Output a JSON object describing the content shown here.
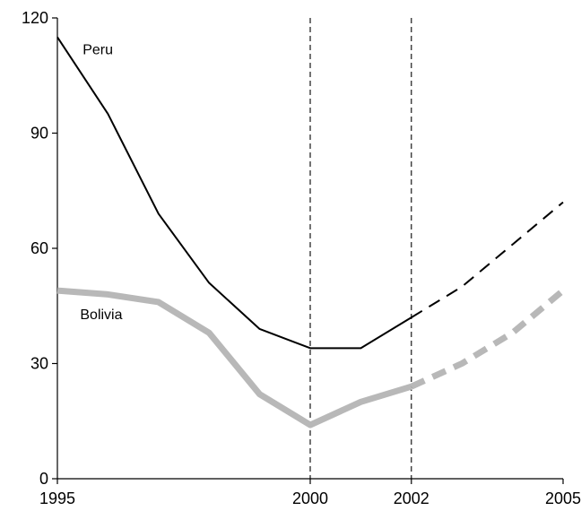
{
  "chart_data": {
    "type": "line",
    "title": "",
    "xlabel": "",
    "ylabel": "",
    "xlim": [
      1995,
      2005
    ],
    "ylim": [
      0,
      120
    ],
    "x_ticks": [
      "1995",
      "2000",
      "2002",
      "2005"
    ],
    "y_ticks": [
      "0",
      "30",
      "60",
      "90",
      "120"
    ],
    "reference_lines_x": [
      2000,
      2002
    ],
    "grid": false,
    "series": [
      {
        "name": "Peru",
        "color": "#000000",
        "style": "thin",
        "x": [
          1995,
          1996,
          1997,
          1998,
          1999,
          2000,
          2001,
          2002
        ],
        "values": [
          115,
          95,
          69,
          51,
          39,
          34,
          34,
          42
        ],
        "projection": {
          "x": [
            2002,
            2003,
            2004,
            2005
          ],
          "values": [
            42,
            50,
            61,
            72
          ]
        }
      },
      {
        "name": "Bolivia",
        "color": "#b8b8b8",
        "style": "thick",
        "x": [
          1995,
          1996,
          1997,
          1998,
          1999,
          2000,
          2001,
          2002
        ],
        "values": [
          49,
          48,
          46,
          38,
          22,
          14,
          20,
          24
        ],
        "projection": {
          "x": [
            2002,
            2003,
            2004,
            2005
          ],
          "values": [
            24,
            30,
            38,
            49
          ]
        }
      }
    ]
  }
}
